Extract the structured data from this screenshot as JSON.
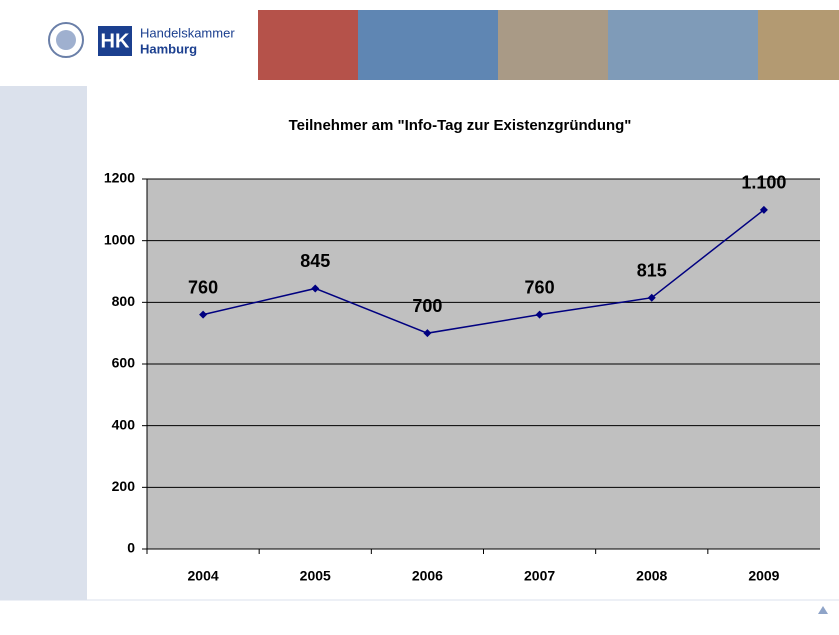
{
  "header": {
    "logo_short": "HK",
    "logo_line1": "Handelskammer",
    "logo_line2": "Hamburg"
  },
  "chart_data": {
    "type": "line",
    "title": "Teilnehmer am \"Info-Tag zur Existenzgründung\"",
    "categories": [
      "2004",
      "2005",
      "2006",
      "2007",
      "2008",
      "2009"
    ],
    "values": [
      760,
      845,
      700,
      760,
      815,
      1100
    ],
    "value_labels": [
      "760",
      "845",
      "700",
      "760",
      "815",
      "1.100"
    ],
    "color": "#000080",
    "plot_background": "#c0c0c0",
    "ylim": [
      0,
      1200
    ],
    "yticks": [
      0,
      200,
      400,
      600,
      800,
      1000,
      1200
    ],
    "grid": true
  }
}
